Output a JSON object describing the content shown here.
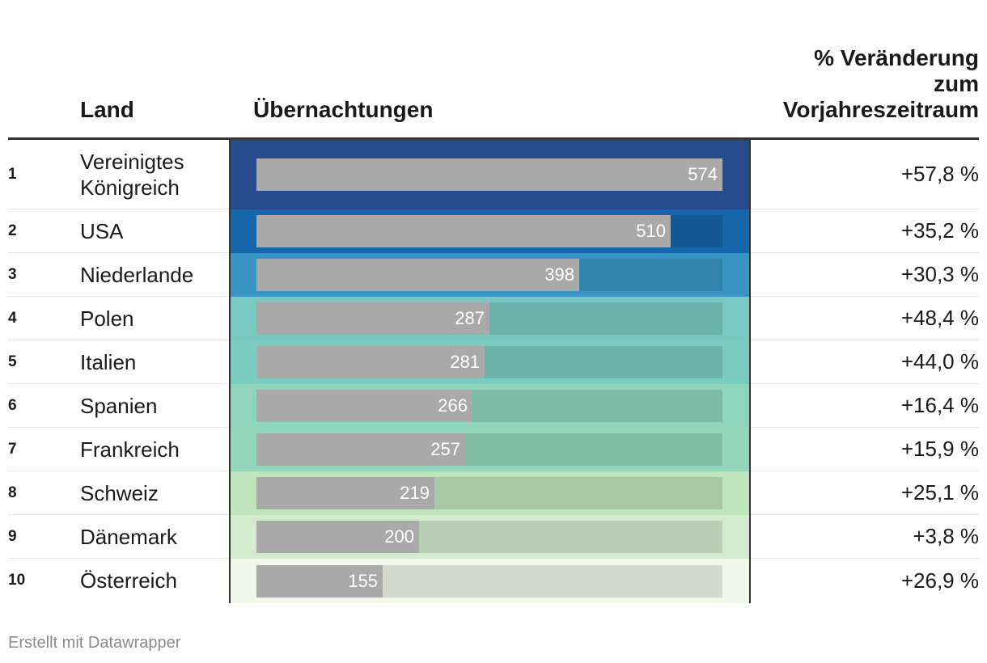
{
  "header": {
    "land": "Land",
    "value": "Übernachtungen",
    "change_lines": [
      "% Veränderung",
      "zum",
      "Vorjahreszeitraum"
    ]
  },
  "footer": "Erstellt mit Datawrapper",
  "chart_data": {
    "type": "table",
    "columns": [
      "",
      "Land",
      "Übernachtungen",
      "% Veränderung zum Vorjahreszeitraum"
    ],
    "max_value": 574,
    "rows": [
      {
        "rank": "1",
        "land_lines": [
          "Vereinigtes",
          "Königreich"
        ],
        "value": 574,
        "change": "+57,8 %",
        "color": "#274b8d"
      },
      {
        "rank": "2",
        "land_lines": [
          "USA"
        ],
        "value": 510,
        "change": "+35,2 %",
        "color": "#1566ab"
      },
      {
        "rank": "3",
        "land_lines": [
          "Niederlande"
        ],
        "value": 398,
        "change": "+30,3 %",
        "color": "#3a94c5"
      },
      {
        "rank": "4",
        "land_lines": [
          "Polen"
        ],
        "value": 287,
        "change": "+48,4 %",
        "color": "#79c9c3"
      },
      {
        "rank": "5",
        "land_lines": [
          "Italien"
        ],
        "value": 281,
        "change": "+44,0 %",
        "color": "#7acbc0"
      },
      {
        "rank": "6",
        "land_lines": [
          "Spanien"
        ],
        "value": 266,
        "change": "+16,4 %",
        "color": "#8fd4bd"
      },
      {
        "rank": "7",
        "land_lines": [
          "Frankreich"
        ],
        "value": 257,
        "change": "+15,9 %",
        "color": "#93d6bd"
      },
      {
        "rank": "8",
        "land_lines": [
          "Schweiz"
        ],
        "value": 219,
        "change": "+25,1 %",
        "color": "#bfe5bd"
      },
      {
        "rank": "9",
        "land_lines": [
          "Dänemark"
        ],
        "value": 200,
        "change": "+3,8 %",
        "color": "#d3ecce"
      },
      {
        "rank": "10",
        "land_lines": [
          "Österreich"
        ],
        "value": 155,
        "change": "+26,9 %",
        "color": "#f1f8e9"
      }
    ]
  }
}
